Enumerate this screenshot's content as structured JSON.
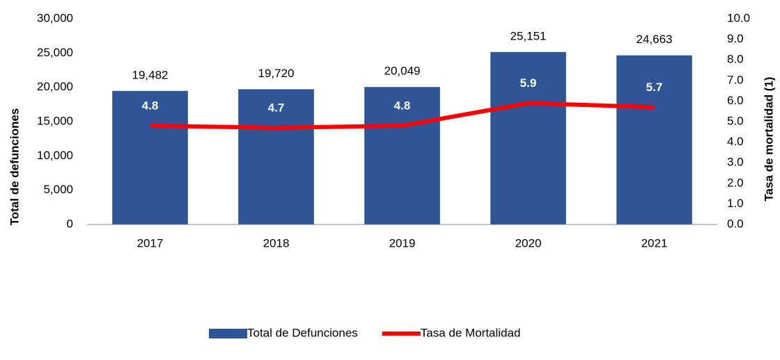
{
  "chart_data": {
    "type": "bar",
    "categories": [
      "2017",
      "2018",
      "2019",
      "2020",
      "2021"
    ],
    "series": [
      {
        "name": "Total de Defunciones",
        "type": "bar",
        "color": "#2f5597",
        "values": [
          19482,
          19720,
          20049,
          25151,
          24663
        ],
        "value_labels": [
          "19,482",
          "19,720",
          "20,049",
          "25,151",
          "24,663"
        ]
      },
      {
        "name": "Tasa de Mortalidad",
        "type": "line",
        "axis": "y2",
        "color": "#ff0000",
        "values": [
          4.8,
          4.7,
          4.8,
          5.9,
          5.7
        ]
      }
    ],
    "ylabel": "Total de defunciones",
    "y2label": "Tasa de mortalidad (1)",
    "ylim": [
      0,
      30000
    ],
    "yticks": [
      0,
      {
        "value": 5000,
        "label": "5,000"
      },
      {
        "value": 10000,
        "label": "10,000"
      },
      {
        "value": 15000,
        "label": "15,000"
      },
      {
        "value": 20000,
        "label": "20,000"
      },
      {
        "value": 25000,
        "label": "25,000"
      },
      {
        "value": 30000,
        "label": "30,000"
      }
    ],
    "y2lim": [
      0,
      10
    ],
    "y2ticks": [
      {
        "value": 0,
        "label": "0.0"
      },
      {
        "value": 1,
        "label": "1.0"
      },
      {
        "value": 2,
        "label": "2.0"
      },
      {
        "value": 3,
        "label": "3.0"
      },
      {
        "value": 4,
        "label": "4.0"
      },
      {
        "value": 5,
        "label": "5.0"
      },
      {
        "value": 6,
        "label": "6.0"
      },
      {
        "value": 7,
        "label": "7.0"
      },
      {
        "value": 8,
        "label": "8.0"
      },
      {
        "value": 9,
        "label": "9.0"
      },
      {
        "value": 10,
        "label": "10.0"
      }
    ],
    "legend": "bottom",
    "grid": false
  }
}
